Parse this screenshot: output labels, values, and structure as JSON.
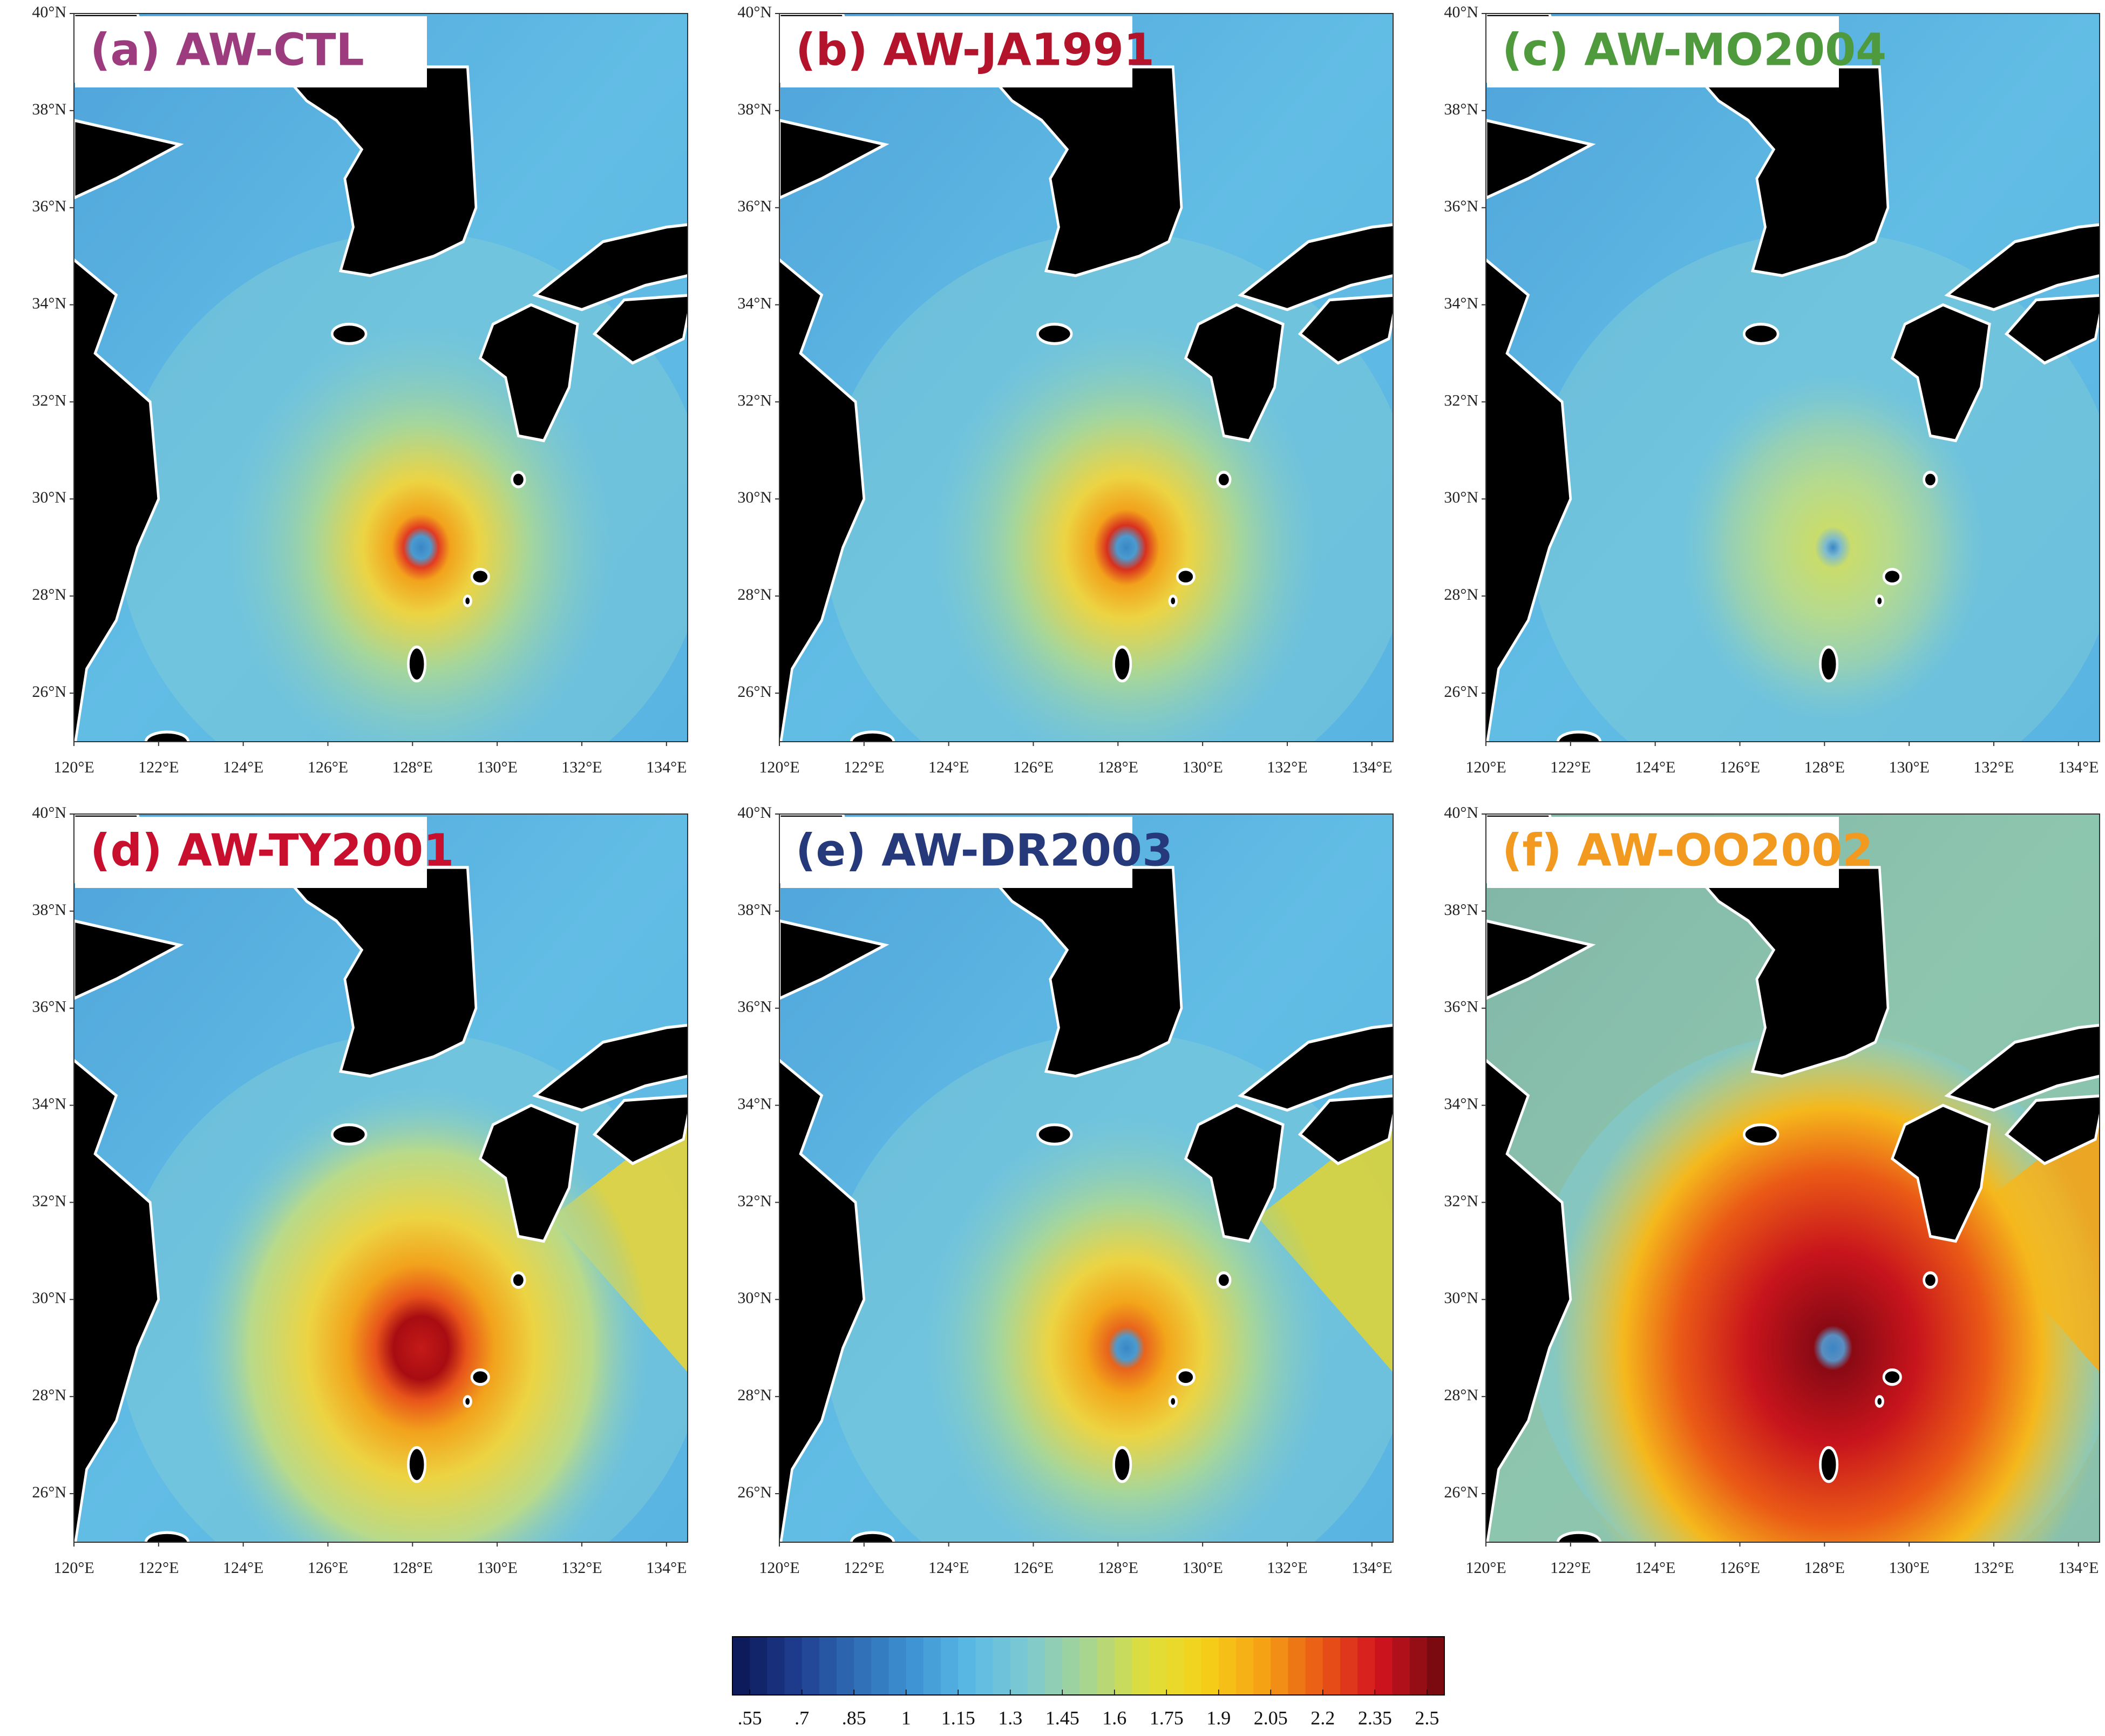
{
  "panels": [
    {
      "title": "(a) AW-CTL",
      "color": "#9c3b7d"
    },
    {
      "title": "(b) AW-JA1991",
      "color": "#b3142c"
    },
    {
      "title": "(c) AW-MO2004",
      "color": "#4f9a3c"
    },
    {
      "title": "(d) AW-TY2001",
      "color": "#c8102e"
    },
    {
      "title": "(e) AW-DR2003",
      "color": "#26397a"
    },
    {
      "title": "(f) AW-OO2002",
      "color": "#f29a1f"
    }
  ],
  "lat_ticks": [
    {
      "value": 40,
      "label": "40°N"
    },
    {
      "value": 38,
      "label": "38°N"
    },
    {
      "value": 36,
      "label": "36°N"
    },
    {
      "value": 34,
      "label": "34°N"
    },
    {
      "value": 32,
      "label": "32°N"
    },
    {
      "value": 30,
      "label": "30°N"
    },
    {
      "value": 28,
      "label": "28°N"
    },
    {
      "value": 26,
      "label": "26°N"
    }
  ],
  "lon_ticks": [
    {
      "value": 120,
      "label": "120°E"
    },
    {
      "value": 122,
      "label": "122°E"
    },
    {
      "value": 124,
      "label": "124°E"
    },
    {
      "value": 126,
      "label": "126°E"
    },
    {
      "value": 128,
      "label": "128°E"
    },
    {
      "value": 130,
      "label": "130°E"
    },
    {
      "value": 132,
      "label": "132°E"
    },
    {
      "value": 134,
      "label": "134°E"
    }
  ],
  "colorbar": {
    "ticks": [
      {
        "value": 0.55,
        "label": ".55"
      },
      {
        "value": 0.7,
        "label": ".7"
      },
      {
        "value": 0.85,
        "label": ".85"
      },
      1,
      1.15,
      1.3,
      1.45,
      1.6,
      1.75,
      1.9,
      2.05,
      2.2,
      2.35,
      2.5
    ],
    "colors": [
      "#0d1a5c",
      "#1f3f8f",
      "#2f6db5",
      "#3f95d4",
      "#5cbbe6",
      "#7fcad0",
      "#a9d68e",
      "#dede3a",
      "#f5d21a",
      "#f5a314",
      "#ea5a16",
      "#d41420",
      "#7a0a10"
    ]
  }
}
